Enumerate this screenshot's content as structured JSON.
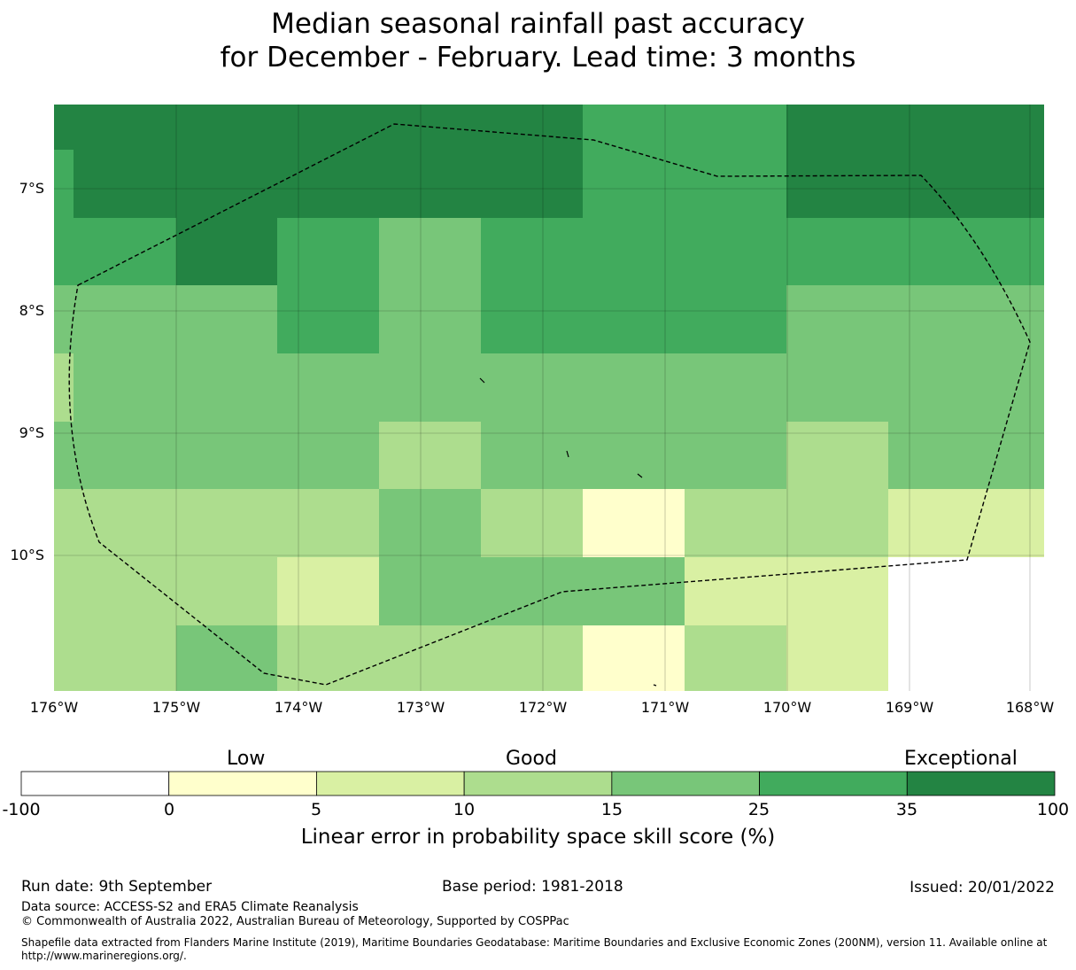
{
  "title": {
    "line1": "Median seasonal rainfall past accuracy",
    "line2": "for December - February. Lead time: 3 months"
  },
  "map": {
    "lat_labels": [
      "7°S",
      "8°S",
      "9°S",
      "10°S"
    ],
    "lon_labels": [
      "176°W",
      "175°W",
      "174°W",
      "173°W",
      "172°W",
      "171°W",
      "170°W",
      "169°W",
      "168°W"
    ],
    "grid_rows": [
      [
        6,
        6,
        6,
        6,
        6,
        5,
        5,
        6,
        6
      ],
      [
        5,
        6,
        5,
        4,
        5,
        5,
        5,
        5,
        5
      ],
      [
        4,
        4,
        5,
        4,
        5,
        5,
        5,
        4,
        4
      ],
      [
        4,
        4,
        4,
        4,
        4,
        4,
        4,
        4,
        4
      ],
      [
        4,
        4,
        4,
        3,
        4,
        4,
        4,
        3,
        4
      ],
      [
        3,
        3,
        3,
        4,
        3,
        1,
        3,
        3,
        2
      ],
      [
        3,
        3,
        2,
        4,
        4,
        4,
        2,
        2,
        0
      ],
      [
        3,
        4,
        3,
        3,
        3,
        1,
        3,
        2,
        0
      ]
    ]
  },
  "colorbar": {
    "category_words": [
      "Low",
      "Good",
      "Exceptional"
    ],
    "ticks": [
      "-100",
      "0",
      "5",
      "10",
      "15",
      "25",
      "35",
      "100"
    ],
    "colors": [
      "#ffffff",
      "#ffffcc",
      "#d9f0a3",
      "#addd8e",
      "#78c679",
      "#41ab5d",
      "#238443"
    ],
    "label": "Linear error in probability space skill score (%)"
  },
  "footer": {
    "run_date": "Run date: 9th September",
    "base_period": "Base period: 1981-2018",
    "issued": "Issued: 20/01/2022",
    "data_source": "Data source: ACCESS-S2 and ERA5 Climate Reanalysis",
    "copyright": "© Commonwealth of Australia 2022, Australian Bureau of Meteorology, Supported by COSPPac",
    "shapefile": "Shapefile data extracted from Flanders Marine Institute (2019), Maritime Boundaries Geodatabase: Maritime Boundaries and Exclusive Economic Zones (200NM), version 11. Available online at http://www.marineregions.org/."
  }
}
